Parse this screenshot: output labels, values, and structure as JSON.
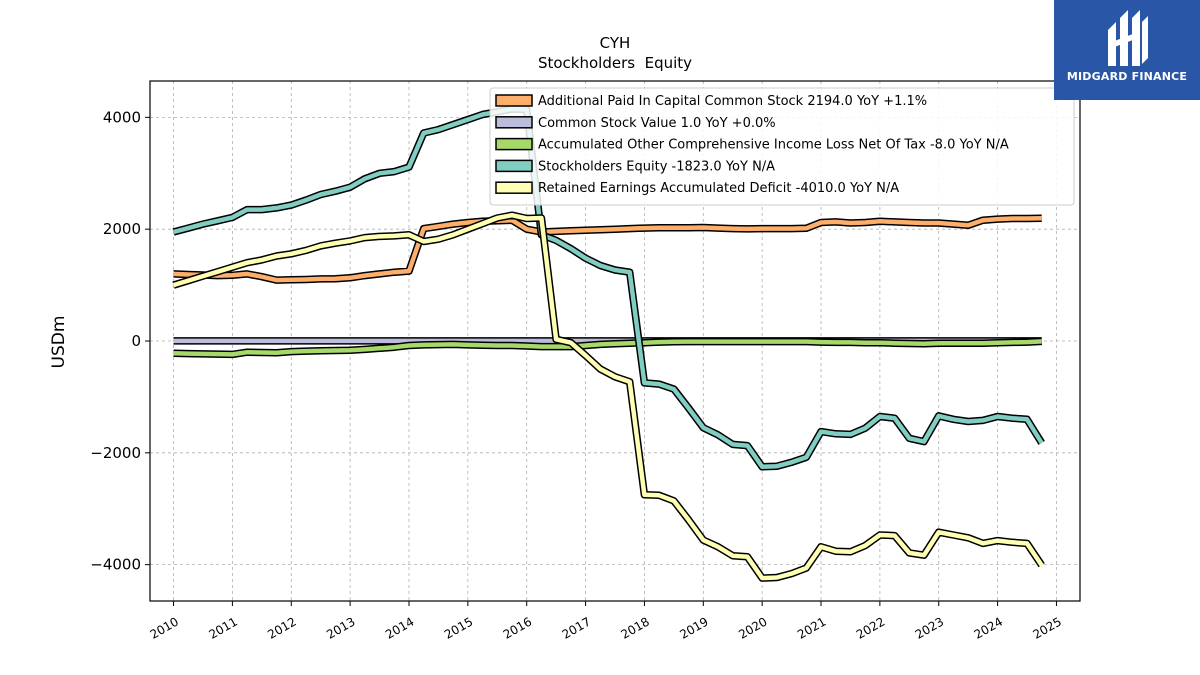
{
  "chart_data": {
    "type": "line",
    "title": "CYH",
    "subtitle": "Stockholders  Equity",
    "ylabel": "USDm",
    "xlabel": "",
    "xlim": [
      2009.6,
      2025.4
    ],
    "ylim": [
      -4650,
      4650
    ],
    "x_ticks": [
      2010,
      2011,
      2012,
      2013,
      2014,
      2015,
      2016,
      2017,
      2018,
      2019,
      2020,
      2021,
      2022,
      2023,
      2024,
      2025
    ],
    "x_tick_labels": [
      "2010",
      "2011",
      "2012",
      "2013",
      "2014",
      "2015",
      "2016",
      "2017",
      "2018",
      "2019",
      "2020",
      "2021",
      "2022",
      "2023",
      "2024",
      "2025"
    ],
    "y_ticks": [
      -4000,
      -2000,
      0,
      2000,
      4000
    ],
    "y_tick_labels": [
      "−4000",
      "−2000",
      "0",
      "2000",
      "4000"
    ],
    "grid": true,
    "legend_position": "top-right",
    "x": [
      2010.0,
      2010.25,
      2010.5,
      2010.75,
      2011.0,
      2011.25,
      2011.5,
      2011.75,
      2012.0,
      2012.25,
      2012.5,
      2012.75,
      2013.0,
      2013.25,
      2013.5,
      2013.75,
      2014.0,
      2014.25,
      2014.5,
      2014.75,
      2015.0,
      2015.25,
      2015.5,
      2015.75,
      2016.0,
      2016.25,
      2016.5,
      2016.75,
      2017.0,
      2017.25,
      2017.5,
      2017.75,
      2018.0,
      2018.25,
      2018.5,
      2018.75,
      2019.0,
      2019.25,
      2019.5,
      2019.75,
      2020.0,
      2020.25,
      2020.5,
      2020.75,
      2021.0,
      2021.25,
      2021.5,
      2021.75,
      2022.0,
      2022.25,
      2022.5,
      2022.75,
      2023.0,
      2023.25,
      2023.5,
      2023.75,
      2024.0,
      2024.25,
      2024.5,
      2024.75
    ],
    "series": [
      {
        "name": "Additional Paid In Capital Common Stock  2194.0 YoY +1.1%",
        "color": "#fdae6b",
        "values": [
          1200,
          1190,
          1180,
          1170,
          1175,
          1200,
          1150,
          1090,
          1095,
          1100,
          1110,
          1115,
          1130,
          1170,
          1200,
          1230,
          1250,
          2010,
          2050,
          2090,
          2120,
          2140,
          2150,
          2160,
          2000,
          1950,
          1960,
          1970,
          1980,
          1990,
          2000,
          2010,
          2020,
          2025,
          2025,
          2025,
          2030,
          2020,
          2010,
          2005,
          2010,
          2010,
          2010,
          2015,
          2120,
          2130,
          2110,
          2120,
          2140,
          2130,
          2120,
          2110,
          2110,
          2090,
          2070,
          2160,
          2180,
          2190,
          2190,
          2194
        ]
      },
      {
        "name": "Common Stock Value  1.0 YoY +0.0%",
        "color": "#bcbddc",
        "values": [
          1,
          1,
          1,
          1,
          1,
          1,
          1,
          1,
          1,
          1,
          1,
          1,
          1,
          1,
          1,
          1,
          1,
          1,
          1,
          1,
          1,
          1,
          1,
          1,
          1,
          1,
          1,
          1,
          1,
          1,
          1,
          1,
          1,
          1,
          1,
          1,
          1,
          1,
          1,
          1,
          1,
          1,
          1,
          1,
          1,
          1,
          1,
          1,
          1,
          1,
          1,
          1,
          1,
          1,
          1,
          1,
          1,
          1,
          1,
          1
        ]
      },
      {
        "name": "Accumulated Other Comprehensive Income Loss Net Of Tax  -8.0 YoY N/A",
        "color": "#a6d96a",
        "values": [
          -220,
          -225,
          -230,
          -235,
          -240,
          -200,
          -205,
          -210,
          -190,
          -180,
          -175,
          -170,
          -165,
          -150,
          -130,
          -110,
          -80,
          -70,
          -65,
          -60,
          -70,
          -75,
          -80,
          -80,
          -90,
          -100,
          -100,
          -100,
          -80,
          -60,
          -50,
          -40,
          -30,
          -20,
          -15,
          -10,
          -10,
          -10,
          -10,
          -10,
          -10,
          -10,
          -10,
          -10,
          -20,
          -25,
          -25,
          -30,
          -30,
          -40,
          -45,
          -50,
          -40,
          -40,
          -40,
          -40,
          -30,
          -25,
          -20,
          -8
        ]
      },
      {
        "name": "Stockholders  Equity  -1823.0 YoY N/A",
        "color": "#80cdc1",
        "values": [
          1950,
          2020,
          2090,
          2150,
          2210,
          2350,
          2350,
          2380,
          2430,
          2520,
          2620,
          2680,
          2750,
          2900,
          3000,
          3030,
          3110,
          3720,
          3780,
          3870,
          3960,
          4050,
          4100,
          4150,
          4140,
          1900,
          1800,
          1650,
          1480,
          1350,
          1270,
          1230,
          -750,
          -770,
          -860,
          -1200,
          -1550,
          -1680,
          -1850,
          -1870,
          -2250,
          -2240,
          -2170,
          -2080,
          -1620,
          -1660,
          -1670,
          -1560,
          -1350,
          -1380,
          -1740,
          -1800,
          -1340,
          -1400,
          -1440,
          -1420,
          -1350,
          -1380,
          -1400,
          -1823
        ]
      },
      {
        "name": "Retained Earnings Accumulated Deficit  -4010.0 YoY N/A",
        "color": "#ffffb3",
        "values": [
          1000,
          1080,
          1160,
          1240,
          1320,
          1400,
          1450,
          1520,
          1560,
          1620,
          1700,
          1750,
          1790,
          1850,
          1870,
          1880,
          1900,
          1780,
          1820,
          1900,
          2000,
          2100,
          2200,
          2250,
          2190,
          2200,
          30,
          -30,
          -260,
          -500,
          -640,
          -730,
          -2750,
          -2760,
          -2860,
          -3200,
          -3560,
          -3680,
          -3840,
          -3860,
          -4240,
          -4230,
          -4160,
          -4060,
          -3680,
          -3760,
          -3770,
          -3660,
          -3470,
          -3480,
          -3790,
          -3830,
          -3420,
          -3470,
          -3520,
          -3620,
          -3570,
          -3600,
          -3620,
          -4010
        ]
      }
    ]
  },
  "logo": {
    "text": "MIDGARD FINANCE",
    "color": "#2a56a8"
  }
}
